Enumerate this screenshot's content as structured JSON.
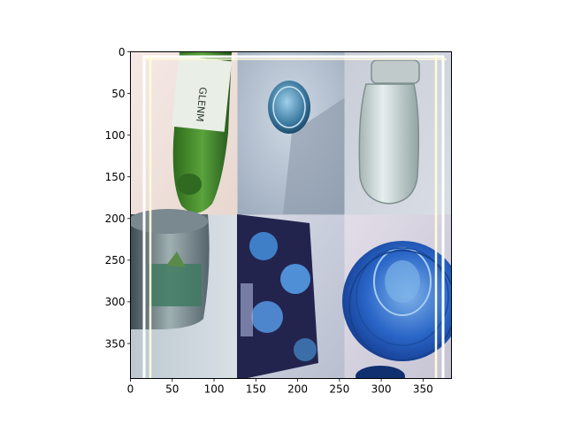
{
  "chart_data": {
    "type": "image",
    "title": "",
    "xlabel": "",
    "ylabel": "",
    "xlim": [
      0,
      384
    ],
    "ylim": [
      392,
      0
    ],
    "x_ticks": [
      0,
      50,
      100,
      150,
      200,
      250,
      300,
      350
    ],
    "y_ticks": [
      0,
      50,
      100,
      150,
      200,
      250,
      300,
      350
    ],
    "grid": false,
    "mosaic": {
      "rows": 2,
      "cols": 3,
      "tiles": [
        {
          "name": "green-glass-bottle",
          "dominant_color": "#3f7d2a"
        },
        {
          "name": "blue-metal-cap",
          "dominant_color": "#4f86a8"
        },
        {
          "name": "clear-glass-jar",
          "dominant_color": "#c9d4d6"
        },
        {
          "name": "tin-can",
          "dominant_color": "#6e8a86"
        },
        {
          "name": "printed-packaging",
          "dominant_color": "#2d2f6a"
        },
        {
          "name": "blue-plastic-bottle-bottom",
          "dominant_color": "#1f4fb8"
        }
      ]
    },
    "overlay_lines_color": "#fffbd9"
  }
}
